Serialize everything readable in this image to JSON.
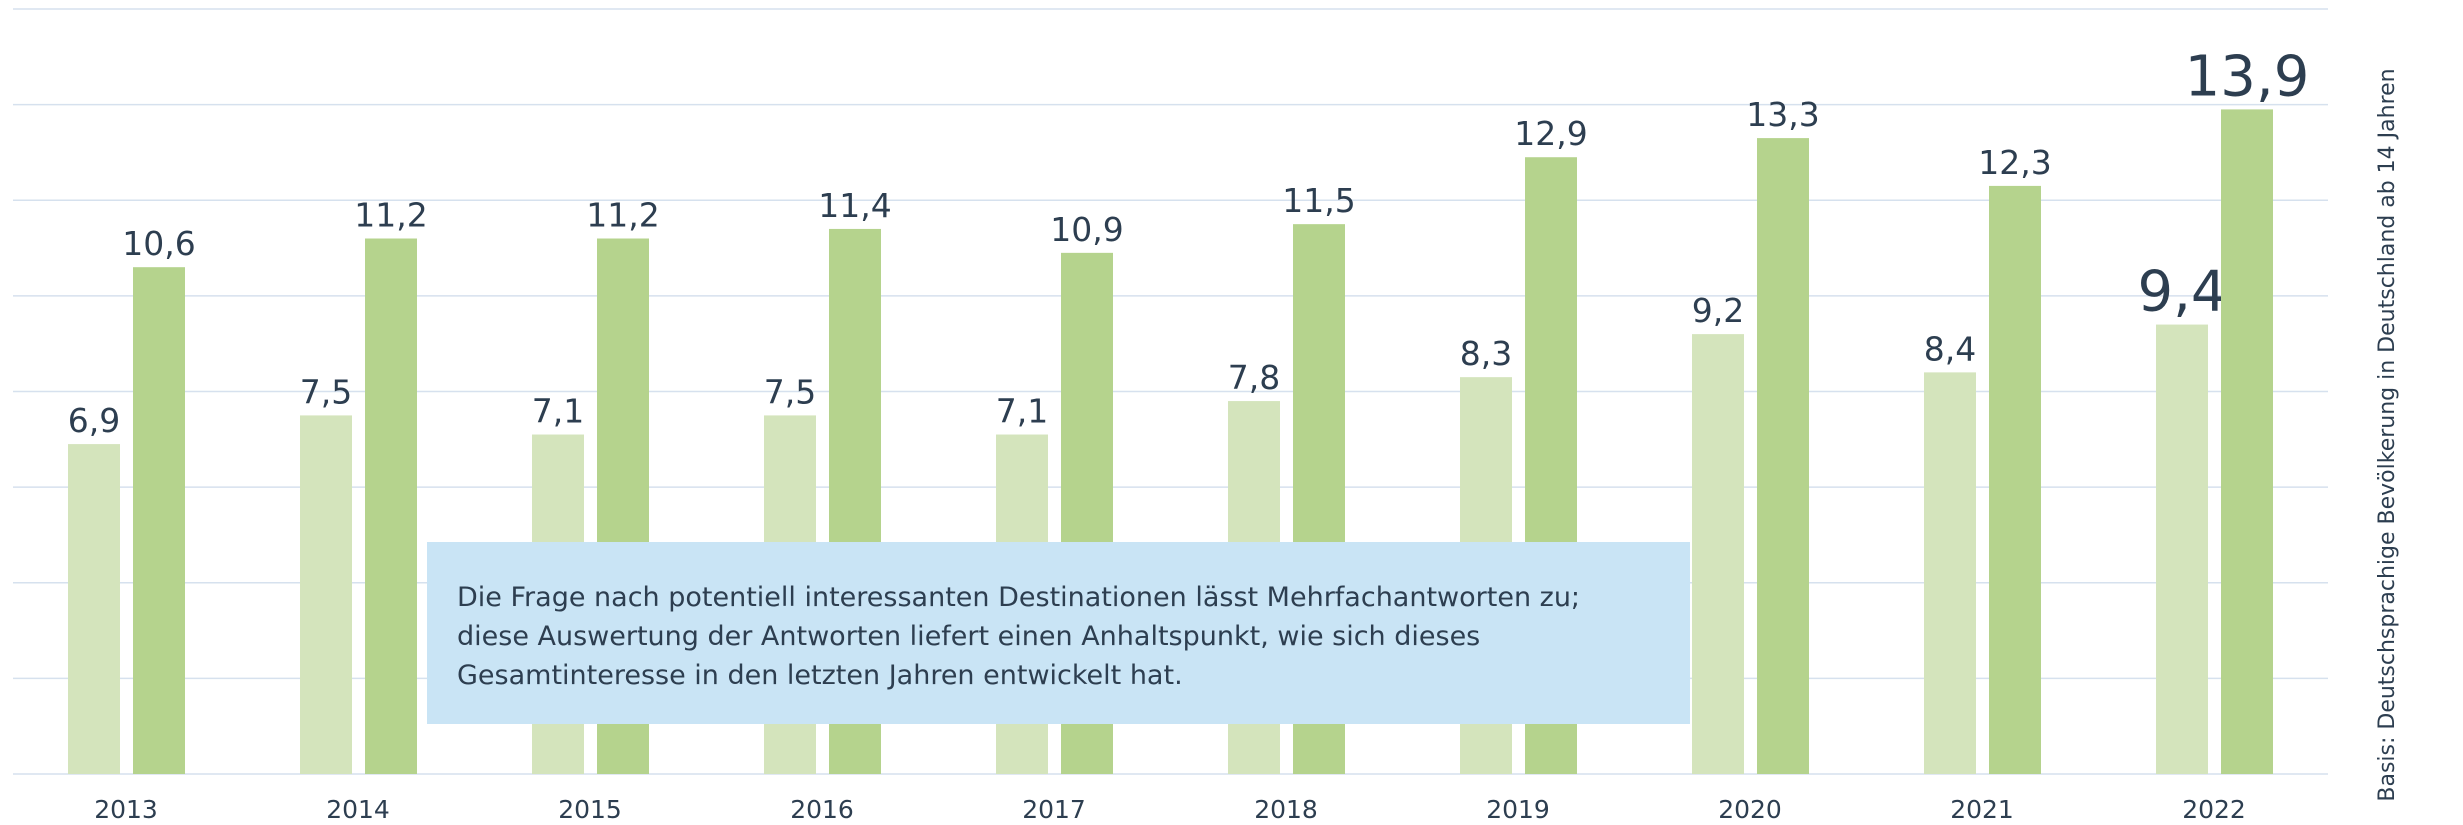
{
  "chart_data": {
    "type": "bar",
    "categories": [
      "2013",
      "2014",
      "2015",
      "2016",
      "2017",
      "2018",
      "2019",
      "2020",
      "2021",
      "2022"
    ],
    "series": [
      {
        "color": "#d4e4bc",
        "values": [
          6.9,
          7.5,
          7.1,
          7.5,
          7.1,
          7.8,
          8.3,
          9.2,
          8.4,
          9.4
        ],
        "value_labels": [
          "6,9",
          "7,5",
          "7,1",
          "7,5",
          "7,1",
          "7,8",
          "8,3",
          "9,2",
          "8,4",
          "9,4"
        ]
      },
      {
        "color": "#b5d38d",
        "values": [
          10.6,
          11.2,
          11.2,
          11.4,
          10.9,
          11.5,
          12.9,
          13.3,
          12.3,
          13.9
        ],
        "value_labels": [
          "10,6",
          "11,2",
          "11,2",
          "11,4",
          "10,9",
          "11,5",
          "12,9",
          "13,3",
          "12,3",
          "13,9"
        ]
      }
    ],
    "ylim": [
      0,
      16
    ],
    "yticks": [
      0,
      2,
      4,
      6,
      8,
      10,
      12,
      14,
      16
    ],
    "grid": true,
    "annotation": "Die Frage nach potentiell interessanten Destinationen lässt Mehrfachantworten zu; diese Auswertung der Antworten liefert einen Anhaltspunkt, wie sich dieses Gesamtinteresse in den letzten Jahren entwickelt hat.",
    "side_note": "Basis: Deutschsprachige Bevölkerung in Deutschland ab 14 Jahren"
  }
}
